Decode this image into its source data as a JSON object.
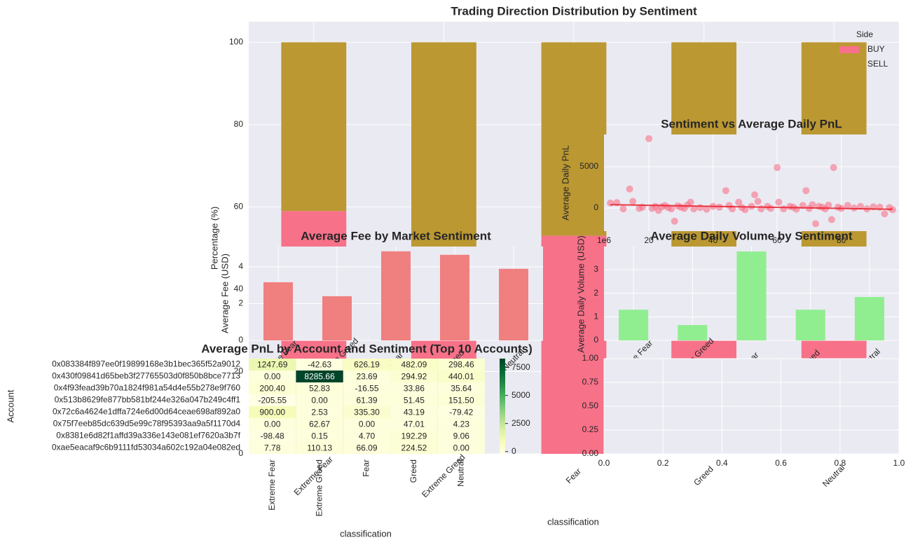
{
  "chart_data": [
    {
      "type": "bar",
      "stacked": true,
      "title": "Trading Direction Distribution by Sentiment",
      "ylabel": "Percentage (%)",
      "xlabel": "classification",
      "categories": [
        "Extreme Fear",
        "Extreme Greed",
        "Fear",
        "Greed",
        "Neutral"
      ],
      "series": [
        {
          "name": "BUY",
          "color": "#f77189",
          "values": [
            59,
            45,
            53,
            47,
            49
          ]
        },
        {
          "name": "SELL",
          "color": "#bb9832",
          "values": [
            41,
            55,
            47,
            53,
            51
          ]
        }
      ],
      "ylim": [
        0,
        105
      ],
      "yticks": [
        0,
        20,
        40,
        60,
        80,
        100
      ],
      "grid": true,
      "legend": "upper right",
      "legend_title": "Side"
    },
    {
      "type": "scatter",
      "title": "Sentiment vs Average Daily PnL",
      "ylabel": "Average Daily PnL",
      "color": "#f77189",
      "x": [
        8,
        10,
        12,
        14,
        15,
        17,
        18,
        20,
        21,
        22,
        23,
        24,
        25,
        26,
        27,
        28,
        29,
        30,
        31,
        32,
        33,
        34,
        36,
        38,
        40,
        42,
        44,
        45,
        46,
        48,
        49,
        50,
        52,
        53,
        54,
        55,
        57,
        58,
        60,
        60.5,
        62,
        64,
        65,
        66,
        68,
        69,
        70,
        71,
        72,
        73,
        74,
        75,
        76,
        77,
        77.6,
        79,
        80,
        82,
        84,
        86,
        88,
        90,
        92,
        93.5,
        95,
        96
      ],
      "y": [
        600,
        650,
        -100,
        2300,
        800,
        -50,
        100,
        8400,
        -50,
        200,
        -300,
        150,
        300,
        50,
        -100,
        -1600,
        250,
        100,
        -50,
        350,
        700,
        -100,
        50,
        -150,
        200,
        100,
        2100,
        300,
        -100,
        700,
        50,
        -200,
        200,
        1600,
        800,
        -100,
        200,
        -50,
        4900,
        700,
        -100,
        200,
        100,
        -150,
        300,
        2100,
        -50,
        400,
        -1900,
        200,
        100,
        -100,
        350,
        -1400,
        4900,
        100,
        -50,
        300,
        0,
        200,
        -100,
        150,
        100,
        -700,
        50,
        -200
      ],
      "trend_x": [
        8,
        96
      ],
      "trend_y": [
        400,
        -150
      ],
      "trend_color": "#e8202a",
      "xlim": [
        6,
        98
      ],
      "xticks": [
        20,
        40,
        60,
        80
      ],
      "ylim": [
        -2800,
        8900
      ],
      "yticks": [
        0,
        5000
      ],
      "grid": true
    },
    {
      "type": "bar",
      "title": "Average Fee by Market Sentiment",
      "ylabel": "Average Fee (USD)",
      "color": "#f08080",
      "categories": [
        "Extreme Fear",
        "Extreme Greed",
        "Fear",
        "Greed",
        "Neutral"
      ],
      "values": [
        3.16,
        2.4,
        4.84,
        4.65,
        3.89
      ],
      "ylim": [
        0,
        5.1
      ],
      "yticks": [
        0,
        2,
        4
      ],
      "grid": true
    },
    {
      "type": "bar",
      "title": "Average Daily Volume by Sentiment",
      "ylabel": "Average Daily Volume (USD)",
      "offset_label": "1e6",
      "color": "#90ee90",
      "categories": [
        "Extreme Fear",
        "Extreme Greed",
        "Fear",
        "Greed",
        "Neutral"
      ],
      "values": [
        1.3,
        0.65,
        3.77,
        1.3,
        1.84
      ],
      "ylim": [
        0,
        3.98
      ],
      "yticks": [
        0,
        1,
        2,
        3
      ],
      "grid": true
    },
    {
      "type": "heatmap",
      "title": "Average PnL by Account and Sentiment (Top 10 Accounts)",
      "ylabel": "Account",
      "xlabel": "classification",
      "columns": [
        "Extreme Fear",
        "Extreme Greed",
        "Fear",
        "Greed",
        "Neutral"
      ],
      "rows": [
        "0x083384f897ee0f19899168e3b1bec365f52a9012",
        "0x430f09841d65beb3f27765503d0f850b8bce7713",
        "0x4f93fead39b70a1824f981a54d4e55b278e9f760",
        "0x513b8629fe877bb581bf244e326a047b249c4ff1",
        "0x72c6a4624e1dffa724e6d00d64ceae698af892a0",
        "0x75f7eeb85dc639d5e99c78f95393aa9a5f1170d4",
        "0x8381e6d82f1affd39a336e143e081ef7620a3b7f",
        "0xae5eacaf9c6b9111fd53034a602c192a04e082ed"
      ],
      "values": [
        [
          1247.69,
          -42.63,
          626.19,
          482.09,
          298.46
        ],
        [
          0,
          8285.66,
          23.69,
          294.92,
          440.01
        ],
        [
          200.4,
          52.83,
          -16.55,
          33.86,
          35.64
        ],
        [
          -205.55,
          0,
          61.39,
          51.45,
          151.5
        ],
        [
          900,
          2.53,
          335.3,
          43.19,
          -79.42
        ],
        [
          0,
          62.67,
          0,
          47.01,
          4.23
        ],
        [
          -98.48,
          0.15,
          4.7,
          192.29,
          9.06
        ],
        [
          7.78,
          110.13,
          66.09,
          224.52,
          0
        ]
      ],
      "value_labels": [
        [
          "1247.69",
          "-42.63",
          "626.19",
          "482.09",
          "298.46"
        ],
        [
          "0.00",
          "8285.66",
          "23.69",
          "294.92",
          "440.01"
        ],
        [
          "200.40",
          "52.83",
          "-16.55",
          "33.86",
          "35.64"
        ],
        [
          "-205.55",
          "0.00",
          "61.39",
          "51.45",
          "151.50"
        ],
        [
          "900.00",
          "2.53",
          "335.30",
          "43.19",
          "-79.42"
        ],
        [
          "0.00",
          "62.67",
          "0.00",
          "47.01",
          "4.23"
        ],
        [
          "-98.48",
          "0.15",
          "4.70",
          "192.29",
          "9.06"
        ],
        [
          "7.78",
          "110.13",
          "66.09",
          "224.52",
          "0.00"
        ]
      ],
      "clim": [
        -205.55,
        8285.66
      ],
      "cbar_ticks": [
        0,
        2500,
        5000,
        7500
      ],
      "colormap": "YlGn"
    },
    {
      "type": "empty",
      "xlim": [
        0,
        1
      ],
      "xticks": [
        {
          "value": 0,
          "label": "0.0"
        },
        {
          "value": 0.2,
          "label": "0.2"
        },
        {
          "value": 0.4,
          "label": "0.4"
        },
        {
          "value": 0.6,
          "label": "0.6"
        },
        {
          "value": 0.8,
          "label": "0.8"
        },
        {
          "value": 1,
          "label": "1.0"
        }
      ],
      "ylim": [
        0,
        1
      ],
      "yticks": [
        {
          "value": 0,
          "label": "0.00"
        },
        {
          "value": 0.25,
          "label": "0.25"
        },
        {
          "value": 0.5,
          "label": "0.50"
        },
        {
          "value": 0.75,
          "label": "0.75"
        },
        {
          "value": 1,
          "label": "1.00"
        }
      ],
      "grid": true
    }
  ]
}
